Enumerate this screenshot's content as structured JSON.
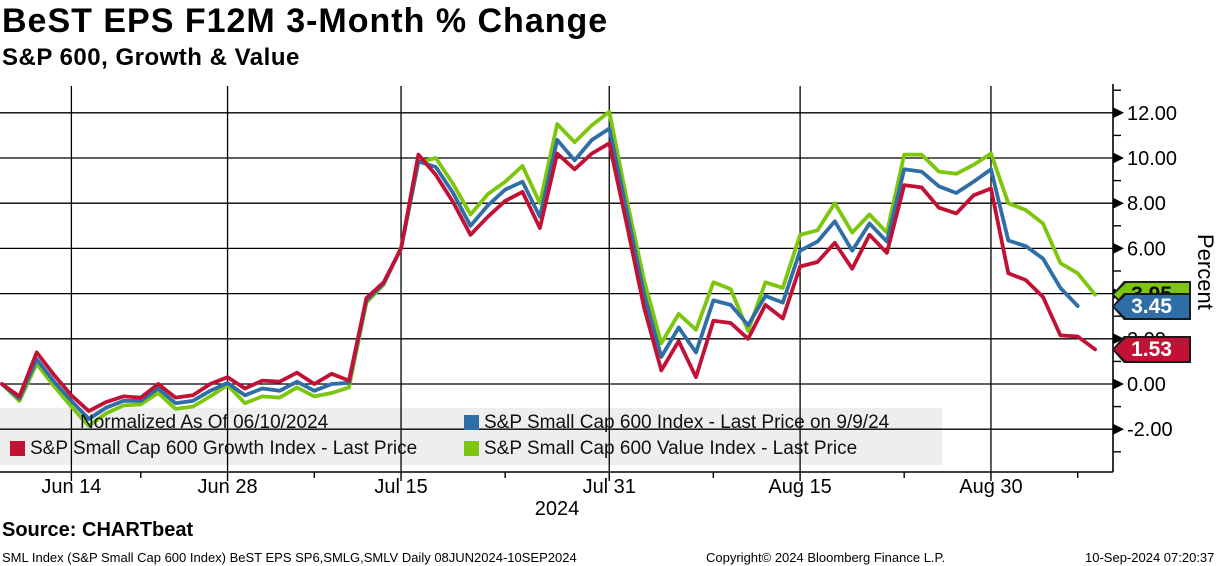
{
  "header": {
    "title": "BeST EPS F12M 3-Month % Change",
    "subtitle": "S&P 600, Growth & Value"
  },
  "legend": {
    "normalized_note": "Normalized As Of 06/10/2024",
    "growth_label": "S&P Small Cap 600 Growth Index - Last Price",
    "index_label": "S&P Small Cap 600 Index - Last Price on 9/9/24",
    "value_label": "S&P Small Cap 600 Value Index - Last Price"
  },
  "chart_data": {
    "type": "line",
    "title": "BeST EPS F12M 3-Month % Change",
    "subtitle": "S&P 600, Growth & Value",
    "xlabel": "2024",
    "ylabel": "Percent",
    "ylim": [
      -3.9,
      13.2
    ],
    "grid": true,
    "legend_position": "bottom-left overlay",
    "year_label": "2024",
    "x_dates": [
      "Jun 10",
      "Jun 11",
      "Jun 12",
      "Jun 13",
      "Jun 14",
      "Jun 17",
      "Jun 18",
      "Jun 20",
      "Jun 21",
      "Jun 24",
      "Jun 25",
      "Jun 26",
      "Jun 27",
      "Jun 28",
      "Jul 1",
      "Jul 2",
      "Jul 3",
      "Jul 5",
      "Jul 8",
      "Jul 9",
      "Jul 10",
      "Jul 11",
      "Jul 12",
      "Jul 15",
      "Jul 16",
      "Jul 17",
      "Jul 18",
      "Jul 19",
      "Jul 22",
      "Jul 23",
      "Jul 24",
      "Jul 25",
      "Jul 26",
      "Jul 29",
      "Jul 30",
      "Jul 31",
      "Aug 1",
      "Aug 2",
      "Aug 5",
      "Aug 6",
      "Aug 7",
      "Aug 8",
      "Aug 9",
      "Aug 12",
      "Aug 13",
      "Aug 14",
      "Aug 15",
      "Aug 16",
      "Aug 19",
      "Aug 20",
      "Aug 21",
      "Aug 22",
      "Aug 23",
      "Aug 26",
      "Aug 27",
      "Aug 28",
      "Aug 29",
      "Aug 30",
      "Sep 3",
      "Sep 4",
      "Sep 5",
      "Sep 6",
      "Sep 9",
      "Sep 10"
    ],
    "x_tick_labels": [
      "Jun 14",
      "Jun 28",
      "Jul 15",
      "Jul 31",
      "Aug 15",
      "Aug 30"
    ],
    "x_tick_indices": [
      4,
      13,
      23,
      35,
      46,
      57
    ],
    "x_minor_indices": [
      8,
      18,
      29,
      41,
      52,
      62
    ],
    "y_ticks": [
      12,
      10,
      8,
      6,
      4,
      2,
      0,
      -2
    ],
    "y_minor_ticks": [
      13,
      11,
      9,
      7,
      5,
      3,
      1,
      -1,
      -3
    ],
    "series": [
      {
        "name": "S&P Small Cap 600 Growth Index - Last Price",
        "color": "#c11236",
        "last_price": 1.53,
        "last_price_label": "1.53",
        "tag_text_color": "#ffffff",
        "values": [
          0,
          -0.55,
          1.4,
          0.4,
          -0.5,
          -1.2,
          -0.8,
          -0.55,
          -0.6,
          0.0,
          -0.6,
          -0.5,
          0.0,
          0.3,
          -0.2,
          0.15,
          0.1,
          0.5,
          0.0,
          0.45,
          0.15,
          3.8,
          4.5,
          6.0,
          10.15,
          9.25,
          8.05,
          6.6,
          7.4,
          8.1,
          8.5,
          6.9,
          10.2,
          9.5,
          10.2,
          10.65,
          7.1,
          3.4,
          0.6,
          1.9,
          0.3,
          2.8,
          2.7,
          2.0,
          3.5,
          2.9,
          5.2,
          5.4,
          6.25,
          5.1,
          6.6,
          5.8,
          8.8,
          8.7,
          7.8,
          7.55,
          8.35,
          8.65,
          4.9,
          4.6,
          3.85,
          2.15,
          2.1,
          1.53
        ]
      },
      {
        "name": "S&P Small Cap 600 Index - Last Price on 9/9/24",
        "color": "#2f6ea6",
        "last_price": 3.45,
        "last_price_label": "3.45",
        "tag_text_color": "#ffffff",
        "values": [
          0,
          -0.65,
          1.1,
          0.1,
          -0.75,
          -1.55,
          -1.05,
          -0.75,
          -0.75,
          -0.2,
          -0.85,
          -0.75,
          -0.3,
          0.05,
          -0.5,
          -0.2,
          -0.3,
          0.1,
          -0.3,
          0.0,
          0.05,
          3.7,
          4.45,
          6.0,
          9.85,
          9.6,
          8.45,
          7.0,
          7.9,
          8.6,
          8.95,
          7.4,
          10.8,
          9.9,
          10.8,
          11.3,
          7.7,
          4.0,
          1.2,
          2.5,
          1.4,
          3.7,
          3.5,
          2.6,
          3.9,
          3.6,
          5.9,
          6.3,
          7.2,
          5.9,
          7.1,
          6.3,
          9.5,
          9.4,
          8.75,
          8.45,
          8.95,
          9.5,
          6.35,
          6.1,
          5.55,
          4.25,
          3.45,
          null
        ]
      },
      {
        "name": "S&P Small Cap 600 Value Index - Last Price",
        "color": "#7cc70b",
        "last_price": 3.95,
        "last_price_label": "3.95",
        "tag_text_color": "#0a0a0a",
        "values": [
          0,
          -0.75,
          0.9,
          -0.1,
          -1.0,
          -1.85,
          -1.3,
          -0.95,
          -0.9,
          -0.4,
          -1.1,
          -1.0,
          -0.55,
          -0.05,
          -0.85,
          -0.55,
          -0.6,
          -0.15,
          -0.55,
          -0.4,
          -0.15,
          3.6,
          4.4,
          6.05,
          9.8,
          10.0,
          8.85,
          7.5,
          8.4,
          8.95,
          9.65,
          8.0,
          11.5,
          10.7,
          11.45,
          12.05,
          8.2,
          4.6,
          1.8,
          3.1,
          2.4,
          4.5,
          4.2,
          2.35,
          4.5,
          4.25,
          6.6,
          6.8,
          8.0,
          6.7,
          7.5,
          6.7,
          10.15,
          10.15,
          9.4,
          9.3,
          9.7,
          10.2,
          8.0,
          7.7,
          7.1,
          5.35,
          4.9,
          3.95
        ]
      }
    ],
    "normalized_note": "Normalized As Of 06/10/2024"
  },
  "footer": {
    "source": "Source: CHARTbeat",
    "description": "SML Index (S&P Small Cap 600 Index) BeST EPS SP6,SMLG,SMLV  Daily 08JUN2024-10SEP2024",
    "copyright": "Copyright© 2024 Bloomberg Finance L.P.",
    "timestamp": "10-Sep-2024 07:20:37"
  },
  "axis_labels": {
    "percent": "Percent"
  }
}
